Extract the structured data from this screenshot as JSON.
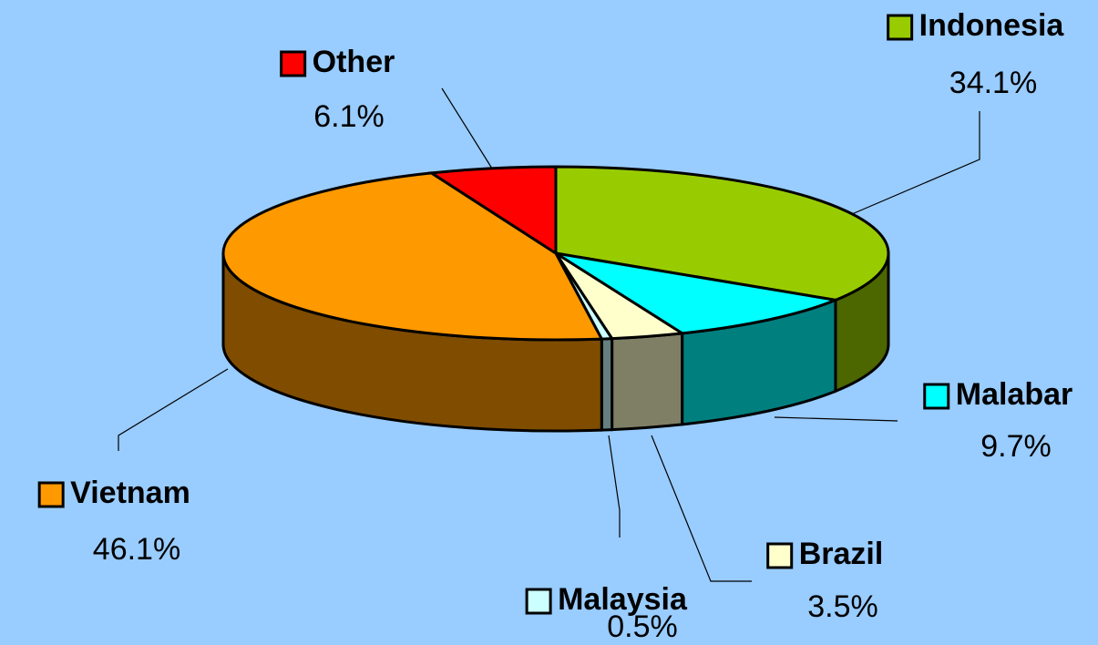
{
  "chart_data": {
    "type": "pie3d",
    "categories": [
      "Indonesia",
      "Malabar",
      "Brazil",
      "Malaysia",
      "Vietnam",
      "Other"
    ],
    "values": [
      34.1,
      9.7,
      3.5,
      0.5,
      46.1,
      6.1
    ],
    "value_labels": [
      "34.1%",
      "9.7%",
      "3.5%",
      "0.5%",
      "46.1%",
      "6.1%"
    ],
    "colors": [
      "#99cc00",
      "#00ffff",
      "#ffffcc",
      "#ccffff",
      "#ff9900",
      "#ff0000"
    ]
  }
}
